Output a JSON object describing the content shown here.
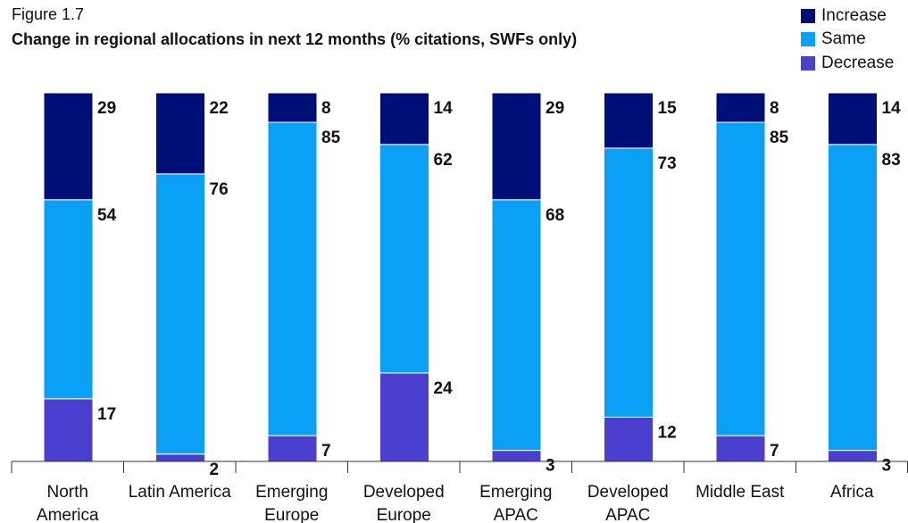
{
  "chart_data": {
    "type": "stacked_bar",
    "label": "Figure 1.7",
    "title": "Change in regional allocations in next 12 months (% citations, SWFs only)",
    "categories": [
      "North America",
      "Latin America",
      "Emerging Europe",
      "Developed Europe",
      "Emerging APAC",
      "Developed APAC",
      "Middle East",
      "Africa"
    ],
    "series": [
      {
        "name": "Decrease",
        "color": "#4b3fcf",
        "values": [
          17,
          2,
          7,
          24,
          3,
          12,
          7,
          3
        ]
      },
      {
        "name": "Same",
        "color": "#0aa0f5",
        "values": [
          54,
          76,
          85,
          62,
          68,
          73,
          85,
          83
        ]
      },
      {
        "name": "Increase",
        "color": "#000f78",
        "values": [
          29,
          22,
          8,
          14,
          29,
          15,
          8,
          14
        ]
      }
    ],
    "legend": "top-right"
  }
}
